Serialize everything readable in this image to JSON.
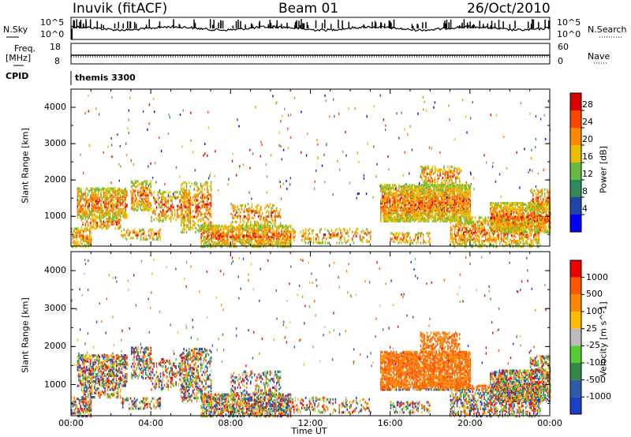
{
  "header": {
    "radar": "Inuvik (fitACF)",
    "beam": "Beam 01",
    "date": "26/Oct/2010"
  },
  "panels": {
    "nsky_label": "N.Sky",
    "nsearch_label": "N.Search",
    "freq_label_1": "Freq.",
    "freq_label_2": "[MHz]",
    "nave_label": "Nave",
    "cpid_label": "CPID",
    "cpid_value": "themis 3300",
    "nsky_ticks": [
      "10^5",
      "10^0"
    ],
    "nsearch_ticks": [
      "10^5",
      "10^0"
    ],
    "freq_ticks": [
      "18",
      "8"
    ],
    "nave_ticks": [
      "60",
      "0"
    ]
  },
  "colors": {
    "power": [
      "#0000ff",
      "#2244aa",
      "#2e8b57",
      "#66bb44",
      "#e8c000",
      "#ff8800",
      "#ff4400",
      "#dd0000"
    ],
    "velocity": [
      "#1a40c8",
      "#2e5aa8",
      "#338844",
      "#55cc33",
      "#bbbbbb",
      "#ffbb00",
      "#ff8800",
      "#ff5500",
      "#ee0000"
    ]
  },
  "chart_data": [
    {
      "type": "heatmap",
      "name": "power",
      "ylabel": "Slant Range [km]",
      "xlabel": "",
      "x_range": [
        "00:00",
        "00:00"
      ],
      "ylim": [
        180,
        4500
      ],
      "y_ticks": [
        1000,
        2000,
        3000,
        4000
      ],
      "colorbar_label": "Power [dB]",
      "colorbar_ticks": [
        "28",
        "24",
        "20",
        "16",
        "12",
        "8",
        "4"
      ]
    },
    {
      "type": "heatmap",
      "name": "velocity",
      "ylabel": "Slant Range [km]",
      "xlabel": "Time UT",
      "x_ticks": [
        "00:00",
        "04:00",
        "08:00",
        "12:00",
        "16:00",
        "20:00",
        "00:00"
      ],
      "ylim": [
        180,
        4500
      ],
      "y_ticks": [
        1000,
        2000,
        3000,
        4000
      ],
      "colorbar_label": "Velocity [m s^-1]",
      "colorbar_ticks": [
        "1000",
        "500",
        "100",
        "25",
        "-25",
        "-100",
        "-500",
        "-1000"
      ]
    }
  ]
}
